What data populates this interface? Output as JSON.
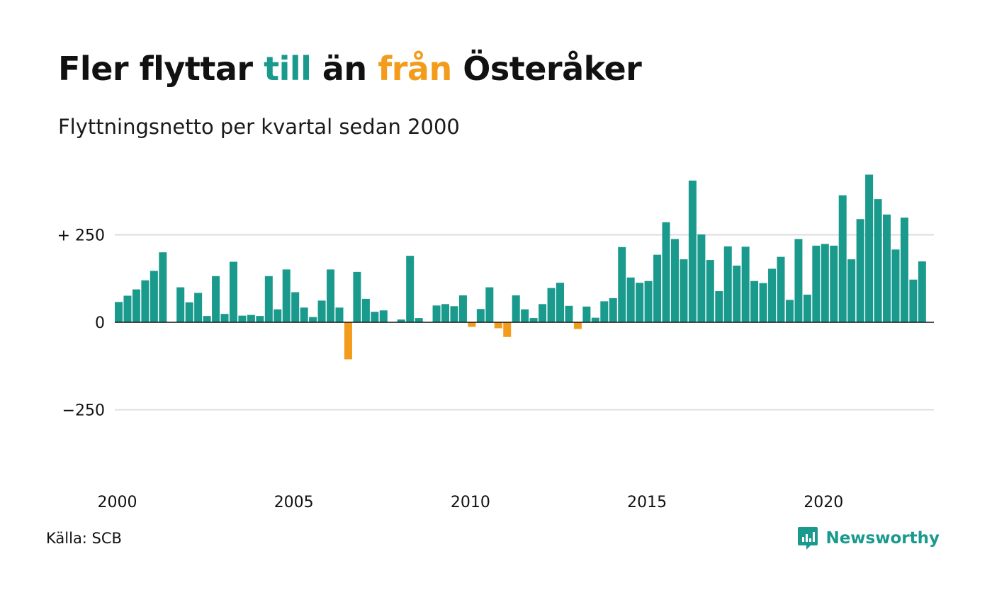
{
  "title": {
    "part1": "Fler flyttar ",
    "part2": "till",
    "part3": " än ",
    "part4": "från",
    "part5": " Österåker"
  },
  "subtitle": "Flyttningsnetto per kvartal sedan 2000",
  "source": "Källa: SCB",
  "brand": "Newsworthy",
  "colors": {
    "positive": "#1a9a8d",
    "negative": "#f39c1b",
    "grid": "#dddddd",
    "axis": "#111111"
  },
  "chart_data": {
    "type": "bar",
    "title": "",
    "xlabel": "",
    "ylabel": "",
    "ylim": [
      -500,
      430
    ],
    "y_ticks": [
      {
        "value": 250,
        "label": "+ 250"
      },
      {
        "value": 0,
        "label": "0"
      },
      {
        "value": -250,
        "label": "−250"
      }
    ],
    "x_ticks": [
      {
        "year": 2000,
        "label": "2000"
      },
      {
        "year": 2005,
        "label": "2005"
      },
      {
        "year": 2010,
        "label": "2010"
      },
      {
        "year": 2015,
        "label": "2015"
      },
      {
        "year": 2020,
        "label": "2020"
      }
    ],
    "grid": true,
    "start": "2000 Q1",
    "frequency": "quarterly",
    "values": [
      58,
      76,
      94,
      120,
      147,
      200,
      null,
      100,
      57,
      84,
      18,
      132,
      24,
      173,
      19,
      21,
      18,
      132,
      37,
      151,
      86,
      42,
      15,
      62,
      151,
      42,
      -106,
      144,
      67,
      30,
      34,
      null,
      8,
      190,
      12,
      null,
      48,
      52,
      46,
      77,
      -13,
      38,
      100,
      -17,
      -42,
      77,
      37,
      12,
      52,
      98,
      113,
      47,
      -19,
      45,
      13,
      60,
      69,
      215,
      128,
      113,
      118,
      193,
      286,
      238,
      180,
      405,
      251,
      178,
      89,
      217,
      162,
      216,
      118,
      112,
      153,
      187,
      64,
      238,
      79,
      219,
      224,
      219,
      363,
      180,
      295,
      422,
      352,
      308,
      208,
      299,
      122,
      174
    ]
  }
}
